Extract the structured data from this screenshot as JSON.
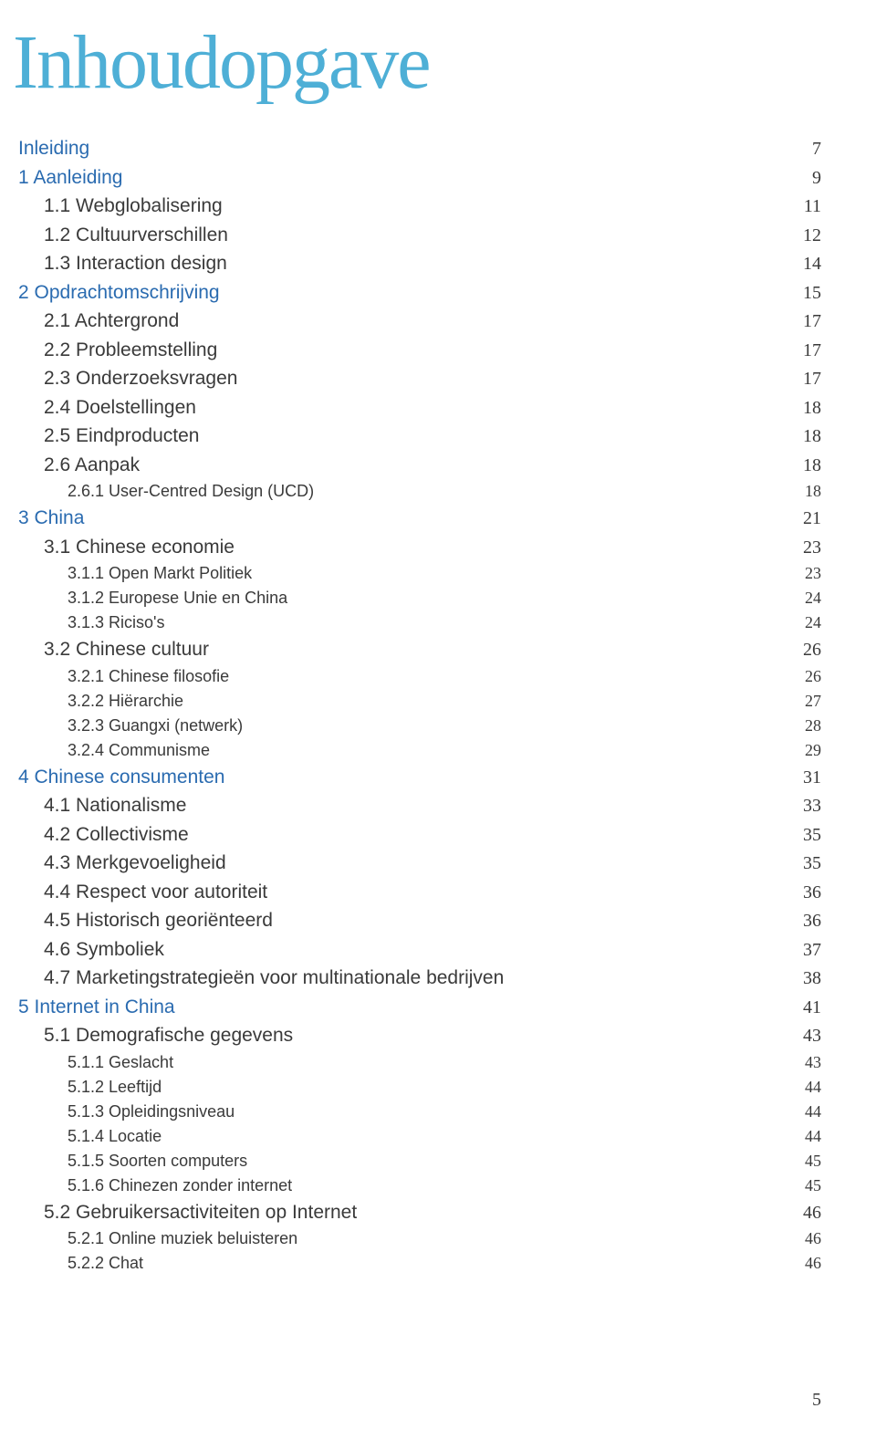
{
  "title": "Inhoudopgave",
  "title_color": "#4eafd6",
  "heading_color": "#2a6bb0",
  "body_color": "#3a3a3a",
  "page_number": "5",
  "entries": [
    {
      "level": 0,
      "label": "Inleiding",
      "page": "7",
      "heading": true
    },
    {
      "level": 0,
      "label": "1 Aanleiding",
      "page": "9",
      "heading": true
    },
    {
      "level": 1,
      "label": "1.1 Webglobalisering",
      "page": "11"
    },
    {
      "level": 1,
      "label": "1.2 Cultuurverschillen",
      "page": "12"
    },
    {
      "level": 1,
      "label": "1.3 Interaction design",
      "page": "14"
    },
    {
      "level": 0,
      "label": "2 Opdrachtomschrijving",
      "page": "15",
      "heading": true
    },
    {
      "level": 1,
      "label": "2.1 Achtergrond",
      "page": "17"
    },
    {
      "level": 1,
      "label": "2.2 Probleemstelling",
      "page": "17"
    },
    {
      "level": 1,
      "label": "2.3 Onderzoeksvragen",
      "page": "17"
    },
    {
      "level": 1,
      "label": "2.4 Doelstellingen",
      "page": "18"
    },
    {
      "level": 1,
      "label": "2.5 Eindproducten",
      "page": "18"
    },
    {
      "level": 1,
      "label": "2.6 Aanpak",
      "page": "18"
    },
    {
      "level": 2,
      "label": "2.6.1 User-Centred Design (UCD)",
      "page": "18"
    },
    {
      "level": 0,
      "label": "3 China",
      "page": "21",
      "heading": true
    },
    {
      "level": 1,
      "label": "3.1 Chinese economie",
      "page": "23"
    },
    {
      "level": 2,
      "label": "3.1.1 Open Markt Politiek",
      "page": "23"
    },
    {
      "level": 2,
      "label": "3.1.2 Europese Unie en China",
      "page": "24"
    },
    {
      "level": 2,
      "label": "3.1.3 Riciso's",
      "page": "24"
    },
    {
      "level": 1,
      "label": "3.2 Chinese cultuur",
      "page": "26"
    },
    {
      "level": 2,
      "label": "3.2.1 Chinese filosofie",
      "page": "26"
    },
    {
      "level": 2,
      "label": "3.2.2 Hiërarchie",
      "page": "27"
    },
    {
      "level": 2,
      "label": "3.2.3 Guangxi (netwerk)",
      "page": "28"
    },
    {
      "level": 2,
      "label": "3.2.4 Communisme",
      "page": "29"
    },
    {
      "level": 0,
      "label": "4 Chinese consumenten",
      "page": "31",
      "heading": true
    },
    {
      "level": 1,
      "label": "4.1 Nationalisme",
      "page": "33"
    },
    {
      "level": 1,
      "label": "4.2 Collectivisme",
      "page": "35"
    },
    {
      "level": 1,
      "label": "4.3 Merkgevoeligheid",
      "page": "35"
    },
    {
      "level": 1,
      "label": "4.4 Respect voor autoriteit",
      "page": "36"
    },
    {
      "level": 1,
      "label": "4.5 Historisch georiënteerd",
      "page": "36"
    },
    {
      "level": 1,
      "label": "4.6 Symboliek",
      "page": "37"
    },
    {
      "level": 1,
      "label": "4.7 Marketingstrategieën voor multinationale bedrijven",
      "page": "38"
    },
    {
      "level": 0,
      "label": "5 Internet in China",
      "page": "41",
      "heading": true
    },
    {
      "level": 1,
      "label": "5.1 Demografische gegevens",
      "page": "43"
    },
    {
      "level": 2,
      "label": "5.1.1 Geslacht",
      "page": "43"
    },
    {
      "level": 2,
      "label": "5.1.2 Leeftijd",
      "page": "44"
    },
    {
      "level": 2,
      "label": "5.1.3 Opleidingsniveau",
      "page": "44"
    },
    {
      "level": 2,
      "label": "5.1.4 Locatie",
      "page": "44"
    },
    {
      "level": 2,
      "label": "5.1.5 Soorten computers",
      "page": "45"
    },
    {
      "level": 2,
      "label": "5.1.6 Chinezen zonder internet",
      "page": "45"
    },
    {
      "level": 1,
      "label": "5.2 Gebruikersactiviteiten op Internet",
      "page": "46"
    },
    {
      "level": 2,
      "label": "5.2.1 Online muziek beluisteren",
      "page": "46"
    },
    {
      "level": 2,
      "label": "5.2.2 Chat",
      "page": "46"
    }
  ]
}
